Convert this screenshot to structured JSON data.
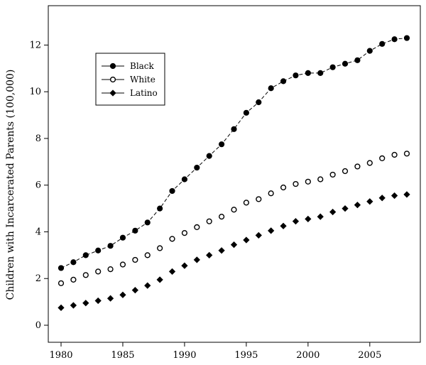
{
  "chart_data": {
    "type": "scatter",
    "ylabel": "Children with Incarcerated Parents (100,000)",
    "xlabel": "",
    "title": "",
    "xlim": [
      1980,
      2008
    ],
    "ylim": [
      0,
      12.5
    ],
    "x_ticks": [
      "1980",
      "1985",
      "1990",
      "1995",
      "2000",
      "2005"
    ],
    "y_ticks": [
      "0",
      "2",
      "4",
      "6",
      "8",
      "10",
      "12"
    ],
    "legend_position": "top-left",
    "grid": false,
    "x": [
      1980,
      1981,
      1982,
      1983,
      1984,
      1985,
      1986,
      1987,
      1988,
      1989,
      1990,
      1991,
      1992,
      1993,
      1994,
      1995,
      1996,
      1997,
      1998,
      1999,
      2000,
      2001,
      2002,
      2003,
      2004,
      2005,
      2006,
      2007,
      2008
    ],
    "series": [
      {
        "name": "Black",
        "marker": "filled-circle",
        "connected": true,
        "values": [
          2.45,
          2.7,
          3.0,
          3.2,
          3.4,
          3.75,
          4.05,
          4.4,
          5.0,
          5.75,
          6.25,
          6.75,
          7.25,
          7.75,
          8.4,
          9.1,
          9.55,
          10.15,
          10.45,
          10.7,
          10.8,
          10.8,
          11.05,
          11.2,
          11.35,
          11.75,
          12.05,
          12.25,
          12.3
        ]
      },
      {
        "name": "White",
        "marker": "open-circle",
        "connected": false,
        "values": [
          1.8,
          1.95,
          2.15,
          2.3,
          2.4,
          2.6,
          2.8,
          3.0,
          3.3,
          3.7,
          3.95,
          4.2,
          4.45,
          4.65,
          4.95,
          5.25,
          5.4,
          5.65,
          5.9,
          6.05,
          6.15,
          6.25,
          6.45,
          6.6,
          6.8,
          6.95,
          7.15,
          7.3,
          7.35
        ]
      },
      {
        "name": "Latino",
        "marker": "filled-diamond",
        "connected": false,
        "values": [
          0.75,
          0.85,
          0.95,
          1.05,
          1.15,
          1.3,
          1.5,
          1.7,
          1.95,
          2.3,
          2.55,
          2.8,
          3.0,
          3.2,
          3.45,
          3.65,
          3.85,
          4.05,
          4.25,
          4.45,
          4.55,
          4.65,
          4.85,
          5.0,
          5.15,
          5.3,
          5.45,
          5.55,
          5.6
        ]
      }
    ]
  }
}
